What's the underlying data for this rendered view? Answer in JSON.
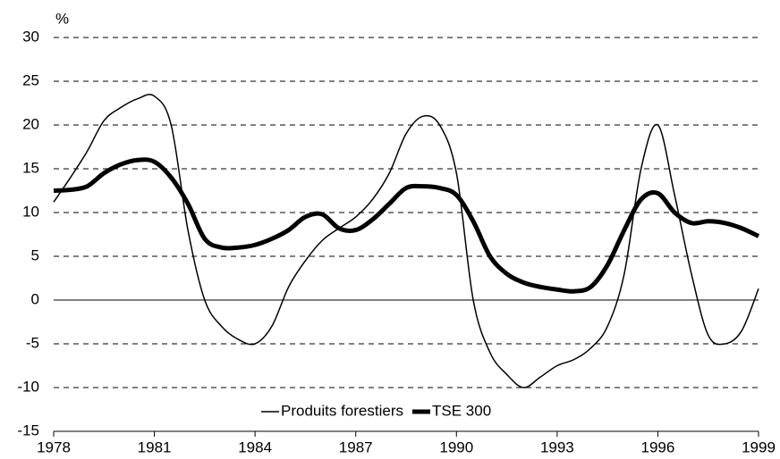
{
  "chart_data": {
    "type": "line",
    "y_label": "%",
    "x": [
      1978,
      1978.5,
      1979,
      1979.5,
      1980,
      1980.5,
      1981,
      1981.5,
      1982,
      1982.5,
      1983,
      1983.5,
      1984,
      1984.5,
      1985,
      1985.5,
      1986,
      1986.5,
      1987,
      1987.5,
      1988,
      1988.5,
      1989,
      1989.5,
      1990,
      1990.5,
      1991,
      1991.5,
      1992,
      1992.5,
      1993,
      1993.5,
      1994,
      1994.5,
      1995,
      1995.5,
      1996,
      1996.5,
      1997,
      1997.5,
      1998,
      1998.5,
      1999
    ],
    "series": [
      {
        "name": "Produits forestiers",
        "color": "#000000",
        "width": 1.5,
        "values": [
          11.2,
          14,
          17,
          20.5,
          22,
          23,
          23.3,
          20,
          8,
          0,
          -3,
          -4.5,
          -5,
          -3,
          1.5,
          4.5,
          6.8,
          8.2,
          9.5,
          11.5,
          14.5,
          19,
          21,
          20,
          14.5,
          0,
          -6,
          -8.5,
          -10,
          -8.8,
          -7.5,
          -6.8,
          -5.5,
          -3,
          3,
          15,
          20,
          12,
          3,
          -4,
          -5,
          -3.5,
          1.3
        ]
      },
      {
        "name": "TSE 300",
        "color": "#000000",
        "width": 5,
        "values": [
          12.5,
          12.6,
          13,
          14.5,
          15.5,
          16,
          15.8,
          14,
          11,
          7,
          6,
          6,
          6.3,
          7,
          8,
          9.5,
          9.8,
          8.2,
          8,
          9.2,
          11,
          12.8,
          13,
          12.8,
          12,
          9,
          5,
          3,
          2,
          1.5,
          1.2,
          1,
          1.5,
          4,
          8,
          11.5,
          12.2,
          10,
          8.8,
          9,
          8.8,
          8.2,
          7.3
        ]
      }
    ],
    "xlim": [
      1978,
      1999
    ],
    "xticks": [
      1978,
      1981,
      1984,
      1987,
      1990,
      1993,
      1996,
      1999
    ],
    "ylim": [
      -15,
      30
    ],
    "yticks": [
      -15,
      -10,
      -5,
      0,
      5,
      10,
      15,
      20,
      25,
      30
    ],
    "grid": true,
    "legend": "lower center"
  }
}
